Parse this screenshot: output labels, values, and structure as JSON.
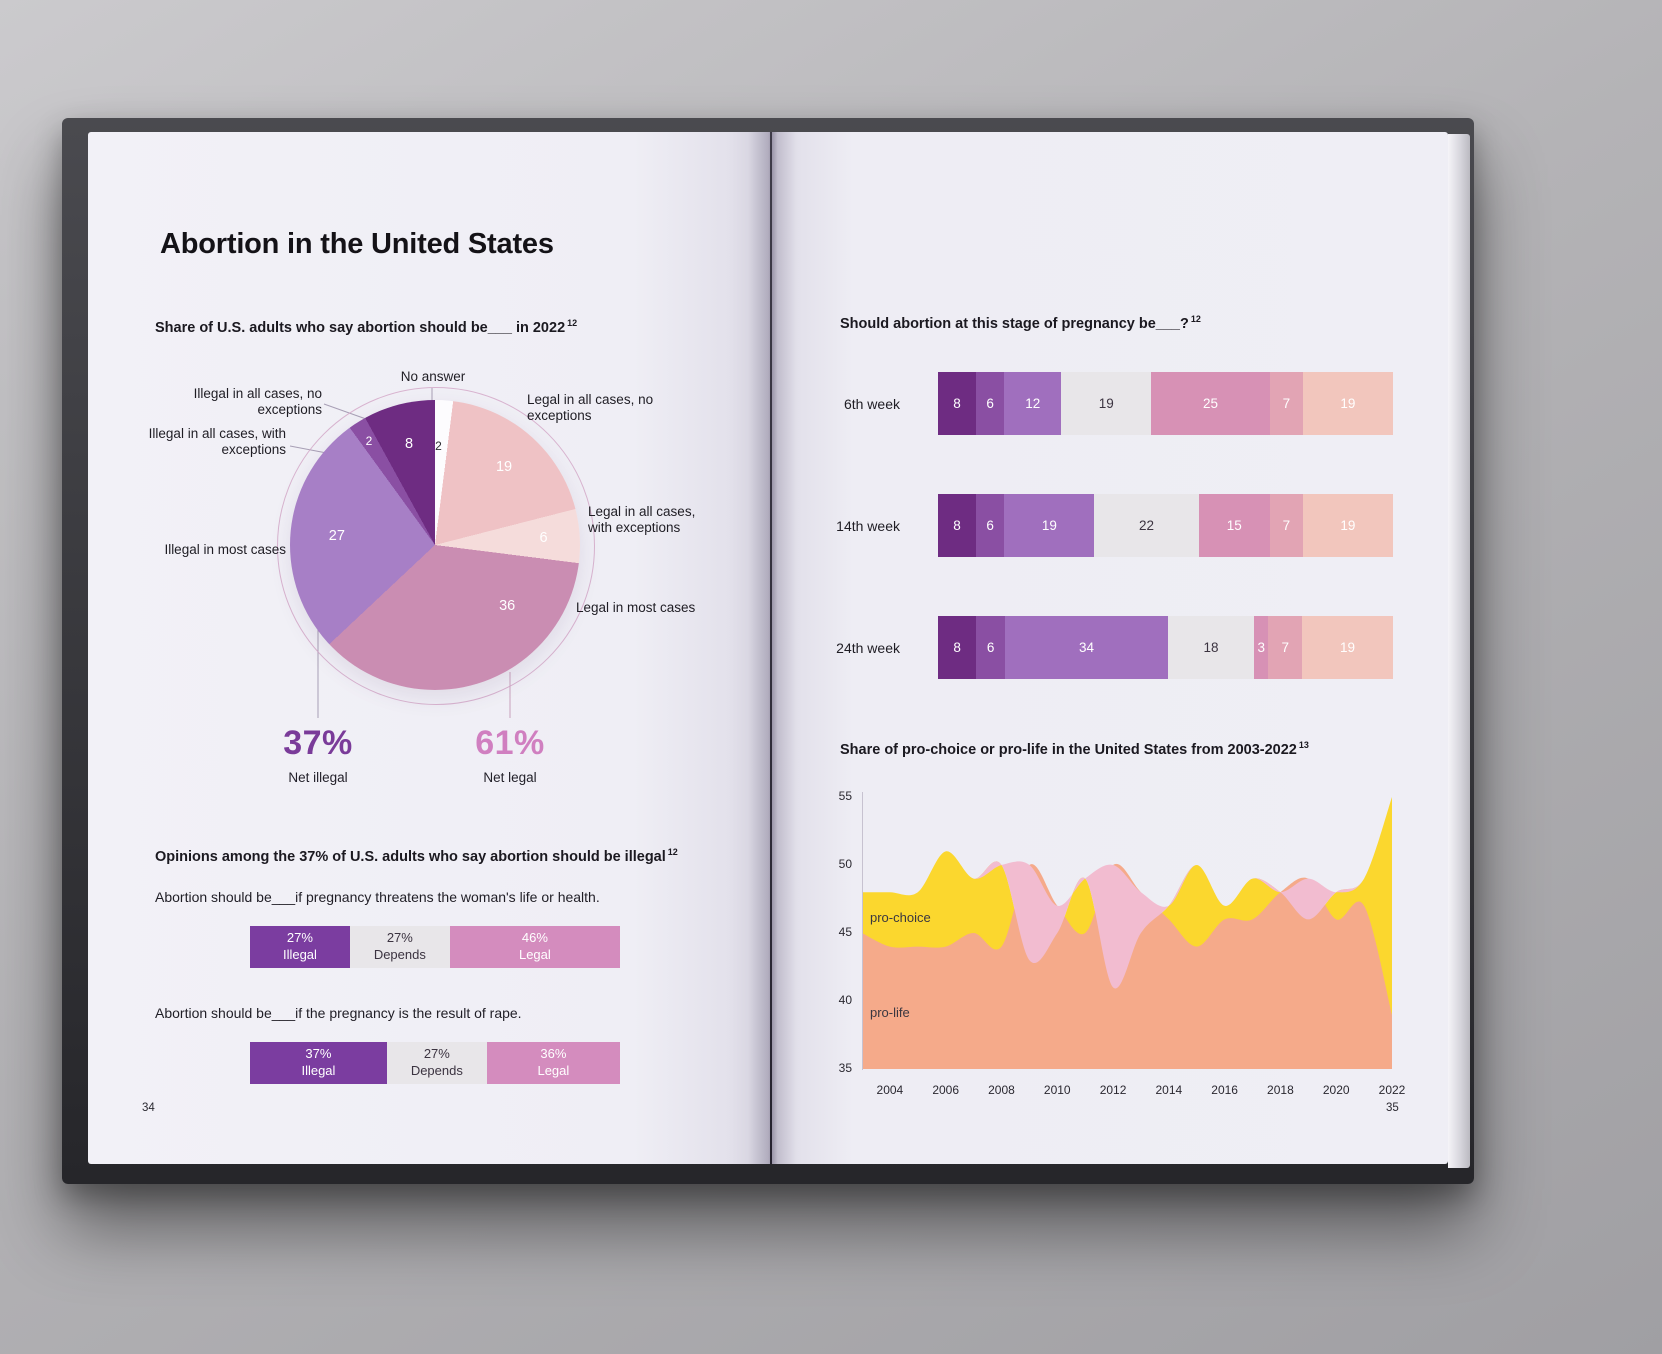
{
  "book": {
    "title": "Abortion in the United States",
    "left_page_number": "34",
    "right_page_number": "35"
  },
  "palette": {
    "purple_dark": "#6e2c82",
    "purple_mid": "#8a4fa3",
    "purple_light": "#a06fbe",
    "neutral_gray": "#e8e6e9",
    "pink": "#d791b5",
    "pink_mid": "#e2a4b4",
    "salmon_light": "#f2c6bd",
    "net_illegal_purple": "#7a3b99",
    "net_legal_pink": "#d07fc0",
    "prochoice_yellow": "#fbd72e",
    "prolife_salmon": "#f5aa8a",
    "overlap_pink": "#f2bcd0"
  },
  "chart_data": [
    {
      "id": "pie_2022",
      "type": "pie",
      "title": "Share of U.S. adults who say abortion should be___ in 2022",
      "footnote": "12",
      "slices": [
        {
          "label": "No answer",
          "value": 2,
          "color": "#fdfcfe",
          "text_color": "#2b2a30"
        },
        {
          "label": "Legal in all cases, no exceptions",
          "value": 19,
          "color": "#efc2c5",
          "text_color": "#ffffff"
        },
        {
          "label": "Legal in all cases, with exceptions",
          "value": 6,
          "color": "#f5dcdb",
          "text_color": "#ffffff"
        },
        {
          "label": "Legal in most cases",
          "value": 36,
          "color": "#ca8db2",
          "text_color": "#ffffff"
        },
        {
          "label": "Illegal in most cases",
          "value": 27,
          "color": "#a77fc6",
          "text_color": "#ffffff"
        },
        {
          "label": "Illegal in all cases, with exceptions",
          "value": 2,
          "color": "#8a4fa3",
          "text_color": "#ffffff"
        },
        {
          "label": "Illegal in all cases, no exceptions",
          "value": 8,
          "color": "#6e2c82",
          "text_color": "#ffffff"
        }
      ],
      "net": [
        {
          "value": "37%",
          "label": "Net illegal",
          "color": "#7a3b99"
        },
        {
          "value": "61%",
          "label": "Net legal",
          "color": "#d07fc0"
        }
      ]
    },
    {
      "id": "illegal_opinions",
      "type": "bar",
      "title": "Opinions among the 37% of U.S. adults who say abortion should be illegal",
      "footnote": "12",
      "rows": [
        {
          "question": "Abortion should be___if pregnancy threatens the woman's life or health.",
          "segments": [
            {
              "value": 27,
              "value_label": "27%",
              "label": "Illegal",
              "color": "#7b3da0",
              "text_color": "#ffffff"
            },
            {
              "value": 27,
              "value_label": "27%",
              "label": "Depends",
              "color": "#e8e6e9",
              "text_color": "#3b3340"
            },
            {
              "value": 46,
              "value_label": "46%",
              "label": "Legal",
              "color": "#d48cbe",
              "text_color": "#ffffff"
            }
          ]
        },
        {
          "question": "Abortion should be___if the pregnancy is the result of rape.",
          "segments": [
            {
              "value": 37,
              "value_label": "37%",
              "label": "Illegal",
              "color": "#7b3da0",
              "text_color": "#ffffff"
            },
            {
              "value": 27,
              "value_label": "27%",
              "label": "Depends",
              "color": "#e8e6e9",
              "text_color": "#3b3340"
            },
            {
              "value": 36,
              "value_label": "36%",
              "label": "Legal",
              "color": "#d48cbe",
              "text_color": "#ffffff"
            }
          ]
        }
      ]
    },
    {
      "id": "stage_of_pregnancy",
      "type": "bar",
      "title": "Should abortion at this stage of pregnancy be___?",
      "footnote": "12",
      "segment_colors": [
        "#6e2c82",
        "#8a4fa3",
        "#a06fbe",
        "#e8e6e9",
        "#d791b5",
        "#e2a4b4",
        "#f2c6bd"
      ],
      "segment_text_colors": [
        "#ffffff",
        "#ffffff",
        "#ffffff",
        "#3b3340",
        "#ffffff",
        "#ffffff",
        "#ffffff"
      ],
      "rows": [
        {
          "label": "6th week",
          "values": [
            8,
            6,
            12,
            19,
            25,
            7,
            19
          ]
        },
        {
          "label": "14th week",
          "values": [
            8,
            6,
            19,
            22,
            15,
            7,
            19
          ]
        },
        {
          "label": "24th week",
          "values": [
            8,
            6,
            34,
            18,
            3,
            7,
            19
          ]
        }
      ]
    },
    {
      "id": "prochoice_prolife",
      "type": "area",
      "title": "Share of pro-choice or pro-life in the United States from 2003-2022",
      "footnote": "13",
      "ylim": [
        35,
        55
      ],
      "yticks": [
        55,
        50,
        45,
        40,
        35
      ],
      "xticks": [
        2004,
        2006,
        2008,
        2010,
        2012,
        2014,
        2016,
        2018,
        2020,
        2022
      ],
      "years": [
        2003,
        2004,
        2005,
        2006,
        2007,
        2008,
        2009,
        2010,
        2011,
        2012,
        2013,
        2014,
        2015,
        2016,
        2017,
        2018,
        2019,
        2020,
        2021,
        2022
      ],
      "series": [
        {
          "name": "pro-choice",
          "color": "#fbd72e",
          "values": [
            48,
            48,
            48,
            51,
            49,
            50,
            43,
            45,
            49,
            41,
            45,
            47,
            50,
            47,
            49,
            48,
            46,
            48,
            49,
            55
          ]
        },
        {
          "name": "pro-life",
          "color": "#f5aa8a",
          "values": [
            45,
            44,
            44,
            44,
            45,
            44,
            50,
            47,
            45,
            50,
            48,
            46,
            44,
            46,
            46,
            48,
            49,
            46,
            47,
            39
          ]
        }
      ],
      "overlap_color": "#f2bcd0",
      "legend_position": "inside"
    }
  ]
}
